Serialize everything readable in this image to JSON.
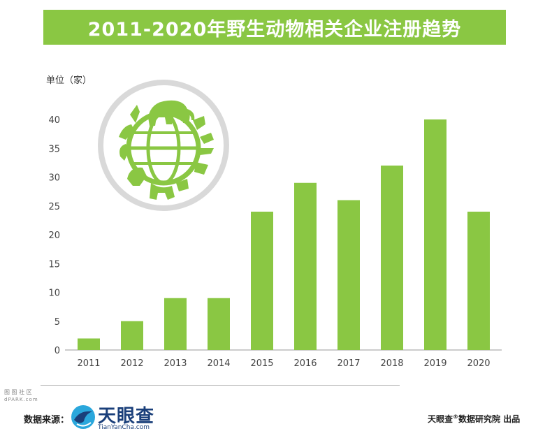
{
  "chart_data": {
    "type": "bar",
    "title": "2011-2020年野生动物相关企业注册趋势",
    "unit_label": "单位（家）",
    "categories": [
      "2011",
      "2012",
      "2013",
      "2014",
      "2015",
      "2016",
      "2017",
      "2018",
      "2019",
      "2020"
    ],
    "values": [
      2,
      5,
      9,
      9,
      24,
      29,
      26,
      32,
      40,
      24
    ],
    "y_ticks": [
      0,
      5,
      10,
      15,
      20,
      25,
      30,
      35,
      40
    ],
    "ylim": [
      0,
      40
    ],
    "grid": false,
    "bar_color": "#8ac743"
  },
  "footer": {
    "source_label": "数据来源：",
    "logo_name": "天眼查",
    "logo_url": "TianYanCha.com",
    "credit_brand": "天眼查",
    "credit_mark": "®",
    "credit_text": "数据研究院 出品",
    "watermark_line1": "图 图 社 区",
    "watermark_line2": "dPARK.com"
  },
  "colors": {
    "accent": "#8ac743",
    "axis": "#9a9a9a",
    "logo_blue": "#1a3f7a",
    "logo_light_blue": "#2aa7dc"
  }
}
